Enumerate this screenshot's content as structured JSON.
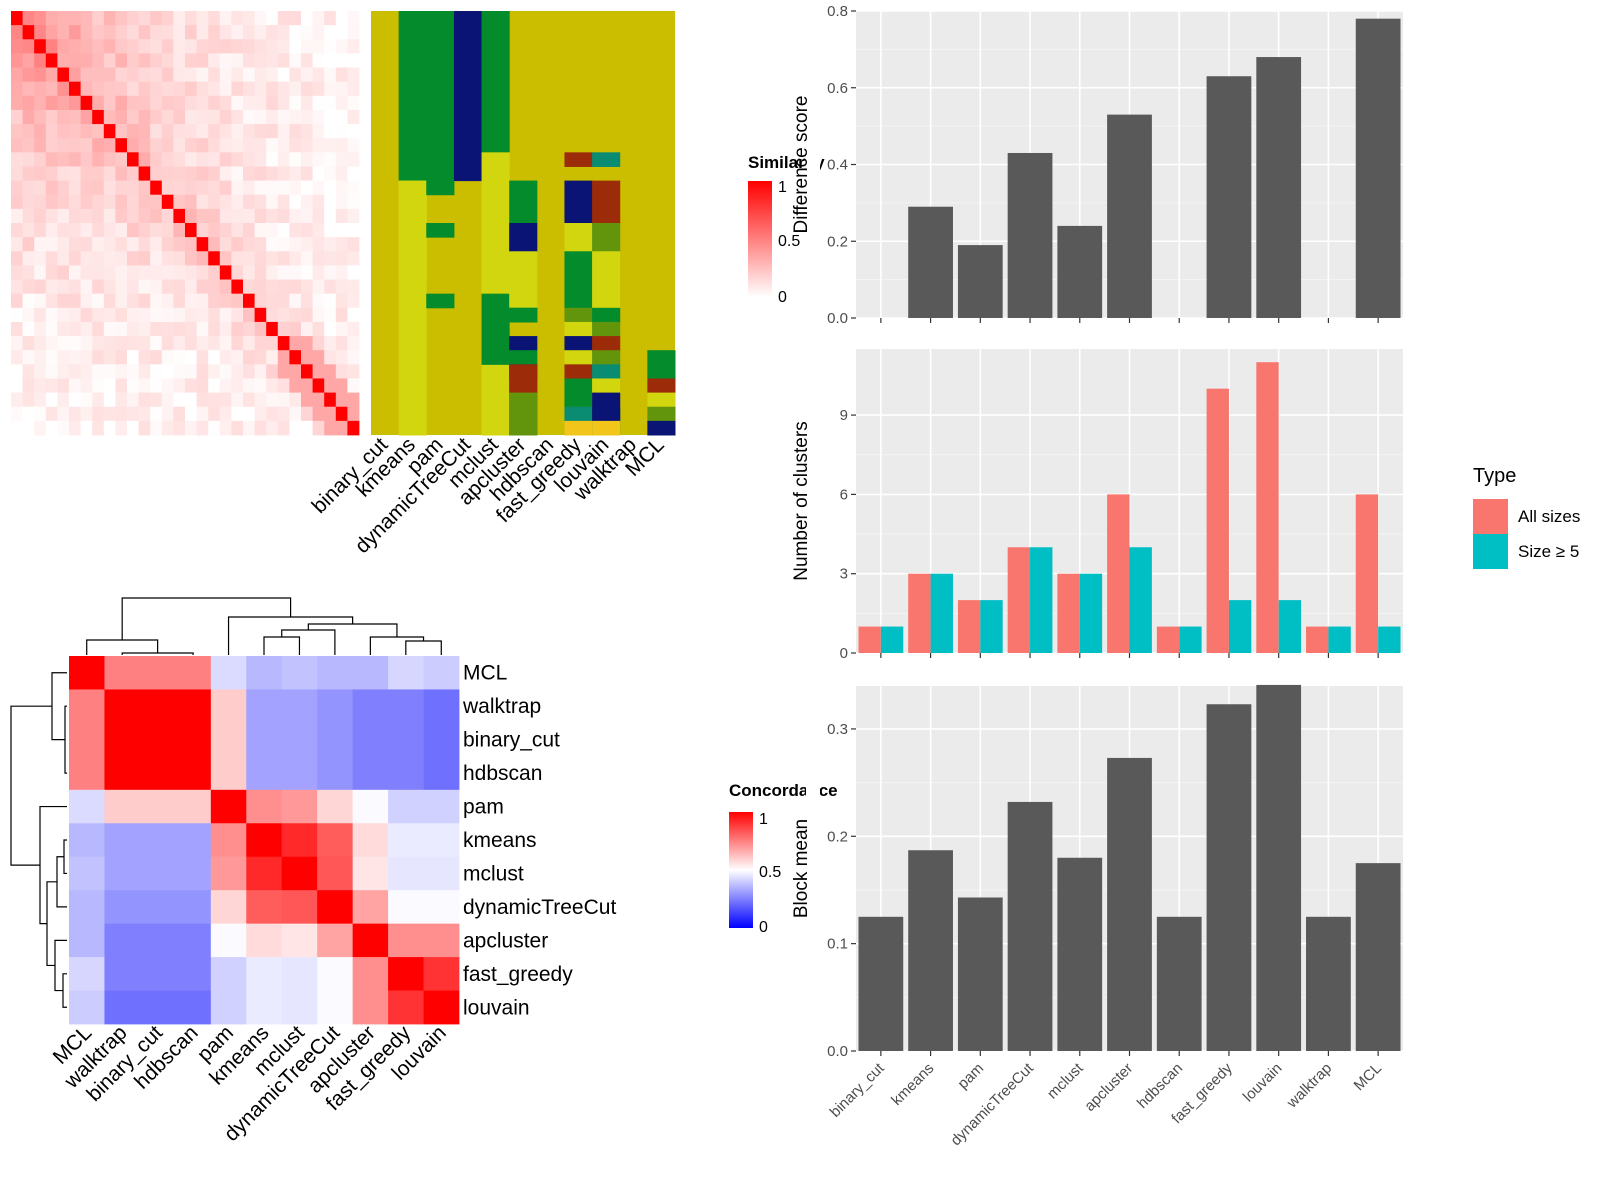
{
  "methods": [
    "binary_cut",
    "kmeans",
    "pam",
    "dynamicTreeCut",
    "mclust",
    "apcluster",
    "hdbscan",
    "fast_greedy",
    "louvain",
    "walktrap",
    "MCL"
  ],
  "similarity_heatmap": {
    "legend_title": "Similarity",
    "legend_ticks": [
      "1",
      "0.5",
      "0"
    ],
    "n_terms": 30,
    "colors": {
      "high": "#ff0000",
      "low": "#ffffff"
    }
  },
  "cluster_heatmap": {
    "palette": {
      "background": "#cbbd00",
      "green": "#038b2c",
      "navy": "#0a1474",
      "lime": "#d2d60e",
      "brown": "#9c2c09",
      "teal": "#0a8c72",
      "olive": "#62940c",
      "red": "#b21616",
      "yellow": "#f2c51a"
    }
  },
  "concordance_heatmap": {
    "legend_title": "Concordance",
    "legend_ticks": [
      "1",
      "0.5",
      "0"
    ],
    "row_order": [
      "MCL",
      "walktrap",
      "binary_cut",
      "hdbscan",
      "pam",
      "kmeans",
      "mclust",
      "dynamicTreeCut",
      "apcluster",
      "fast_greedy",
      "louvain"
    ],
    "col_order": [
      "MCL",
      "walktrap",
      "binary_cut",
      "hdbscan",
      "pam",
      "kmeans",
      "mclust",
      "dynamicTreeCut",
      "apcluster",
      "fast_greedy",
      "louvain"
    ],
    "colors": {
      "high": "#ff0000",
      "mid": "#ffffff",
      "low": "#0000ff"
    },
    "values": [
      [
        1.0,
        0.75,
        0.75,
        0.75,
        0.43,
        0.36,
        0.38,
        0.36,
        0.36,
        0.42,
        0.4
      ],
      [
        0.75,
        1.0,
        1.0,
        1.0,
        0.6,
        0.32,
        0.32,
        0.29,
        0.25,
        0.25,
        0.22
      ],
      [
        0.75,
        1.0,
        1.0,
        1.0,
        0.6,
        0.32,
        0.32,
        0.29,
        0.25,
        0.25,
        0.22
      ],
      [
        0.75,
        1.0,
        1.0,
        1.0,
        0.6,
        0.32,
        0.32,
        0.29,
        0.25,
        0.25,
        0.22
      ],
      [
        0.43,
        0.6,
        0.6,
        0.6,
        1.0,
        0.72,
        0.7,
        0.58,
        0.49,
        0.41,
        0.41
      ],
      [
        0.36,
        0.32,
        0.32,
        0.32,
        0.72,
        1.0,
        0.92,
        0.82,
        0.57,
        0.46,
        0.46
      ],
      [
        0.38,
        0.32,
        0.32,
        0.32,
        0.7,
        0.92,
        1.0,
        0.83,
        0.55,
        0.45,
        0.45
      ],
      [
        0.36,
        0.29,
        0.29,
        0.29,
        0.58,
        0.82,
        0.83,
        1.0,
        0.68,
        0.49,
        0.49
      ],
      [
        0.36,
        0.25,
        0.25,
        0.25,
        0.49,
        0.57,
        0.55,
        0.68,
        1.0,
        0.72,
        0.72
      ],
      [
        0.42,
        0.25,
        0.25,
        0.25,
        0.41,
        0.46,
        0.45,
        0.49,
        0.72,
        1.0,
        0.9
      ],
      [
        0.4,
        0.22,
        0.22,
        0.22,
        0.41,
        0.46,
        0.45,
        0.49,
        0.72,
        0.9,
        1.0
      ]
    ]
  },
  "chart_data": [
    {
      "type": "bar",
      "categories": [
        "binary_cut",
        "kmeans",
        "pam",
        "dynamicTreeCut",
        "mclust",
        "apcluster",
        "hdbscan",
        "fast_greedy",
        "louvain",
        "walktrap",
        "MCL"
      ],
      "values": [
        0,
        0.29,
        0.19,
        0.43,
        0.24,
        0.53,
        0,
        0.63,
        0.68,
        0,
        0.78
      ],
      "ylabel": "Difference score",
      "ylim": [
        0,
        0.8
      ],
      "yticks": [
        "0.0",
        "0.2",
        "0.4",
        "0.6",
        "0.8"
      ],
      "grid": true,
      "bar_color": "#595959"
    },
    {
      "type": "bar",
      "categories": [
        "binary_cut",
        "kmeans",
        "pam",
        "dynamicTreeCut",
        "mclust",
        "apcluster",
        "hdbscan",
        "fast_greedy",
        "louvain",
        "walktrap",
        "MCL"
      ],
      "series": [
        {
          "name": "All sizes",
          "values": [
            1,
            3,
            2,
            4,
            3,
            6,
            1,
            10,
            11,
            1,
            6
          ],
          "color": "#f8766d"
        },
        {
          "name": "Size ≥ 5",
          "values": [
            1,
            3,
            2,
            4,
            3,
            4,
            1,
            2,
            2,
            1,
            1
          ],
          "color": "#00bfc4"
        }
      ],
      "ylabel": "Number of clusters",
      "ylim": [
        0,
        11.5
      ],
      "yticks": [
        "0",
        "3",
        "6",
        "9"
      ],
      "legend_title": "Type",
      "legend_position": "right",
      "grid": true
    },
    {
      "type": "bar",
      "categories": [
        "binary_cut",
        "kmeans",
        "pam",
        "dynamicTreeCut",
        "mclust",
        "apcluster",
        "hdbscan",
        "fast_greedy",
        "louvain",
        "walktrap",
        "MCL"
      ],
      "values": [
        0.125,
        0.187,
        0.143,
        0.232,
        0.18,
        0.273,
        0.125,
        0.323,
        0.341,
        0.125,
        0.175
      ],
      "ylabel": "Block mean",
      "ylim": [
        0,
        0.34
      ],
      "yticks": [
        "0.0",
        "0.1",
        "0.2",
        "0.3"
      ],
      "grid": true,
      "bar_color": "#595959"
    }
  ]
}
